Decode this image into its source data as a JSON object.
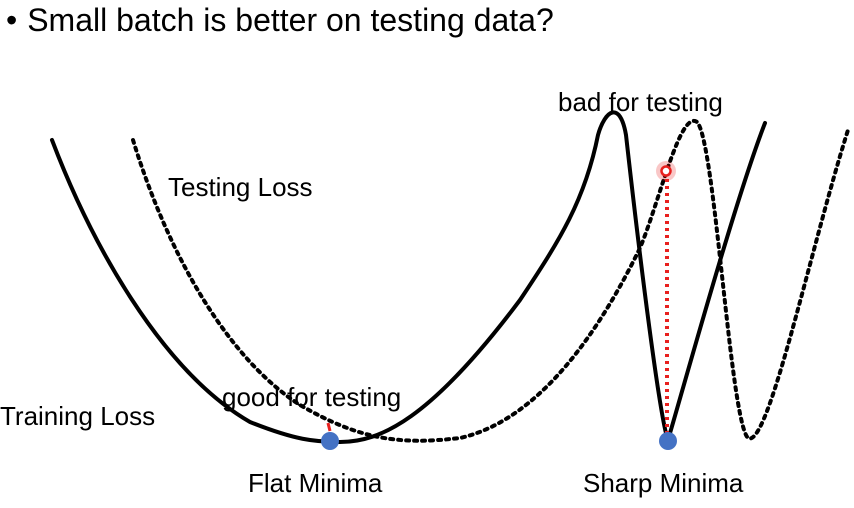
{
  "slide": {
    "bullet": "•",
    "title": "Small batch is better on testing data?"
  },
  "labels": {
    "testing_loss": "Testing Loss",
    "training_loss": "Training Loss",
    "good_for_testing": "good for testing",
    "bad_for_testing": "bad for testing",
    "flat_minima": "Flat Minima",
    "sharp_minima": "Sharp Minima"
  },
  "colors": {
    "curve": "#000000",
    "minimum_point": "#4472C4",
    "gap_marker": "#E8201E"
  }
}
